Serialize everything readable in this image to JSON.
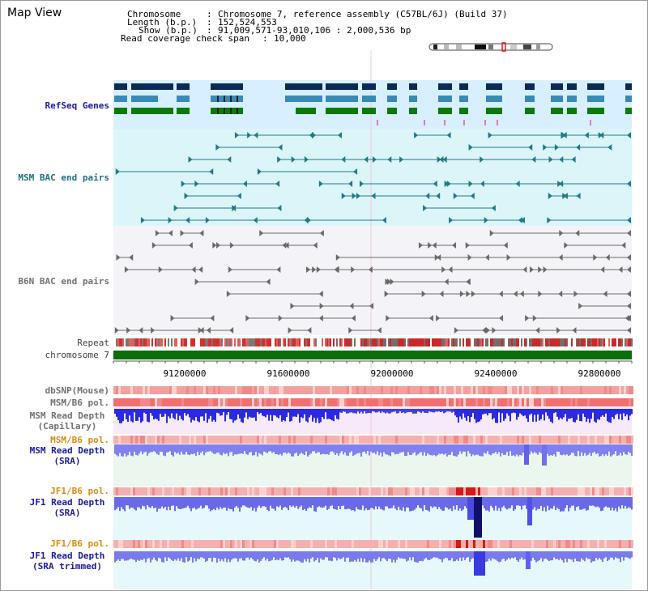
{
  "title": "Map View",
  "header": {
    "chromosome_label": "Chromosome",
    "chromosome_value": "Chromosome 7, reference assembly (C57BL/6J) (Build 37)",
    "length_label": "Length (b.p.)",
    "length_value": "152,524,553",
    "show_label": "Show (b.p.)",
    "show_value": "91,009,571-93,010,106 : 2,000,536 bp",
    "coverage_label": "Read coverage check span",
    "coverage_value": "10,000"
  },
  "tracks": {
    "refseq": "RefSeq Genes",
    "msm_bac": "MSM BAC end pairs",
    "b6n_bac": "B6N BAC end pairs",
    "repeat": "Repeat",
    "chromosome": "chromosome 7",
    "dbsnp": "dbSNP(Mouse)",
    "msm_b6_pol_1": "MSM/B6 pol.",
    "msm_depth_cap_1": "MSM Read Depth",
    "msm_depth_cap_2": "(Capillary)",
    "msm_b6_pol_2": "MSM/B6 pol.",
    "msm_depth_sra_1": "MSM Read Depth",
    "msm_depth_sra_2": "(SRA)",
    "jf1_b6_pol_1": "JF1/B6 pol.",
    "jf1_depth_sra_1": "JF1 Read Depth",
    "jf1_depth_sra_2": "(SRA)",
    "jf1_b6_pol_2": "JF1/B6 pol.",
    "jf1_depth_trim_1": "JF1 Read Depth",
    "jf1_depth_trim_2": "(SRA trimmed)"
  },
  "axis": {
    "ticks": [
      "91200000",
      "91600000",
      "92000000",
      "92400000",
      "92800000"
    ]
  },
  "colors": {
    "refseq_bg": "#d7efff",
    "msm_bac_bg": "#dcf5f8",
    "b6n_bac_bg": "#f2f2f6",
    "chromosome": "#0a6e0a",
    "depth_bar": "#2f2fe0",
    "depth_bar_light": "#7a7aee",
    "pol_red": "#e83030"
  }
}
